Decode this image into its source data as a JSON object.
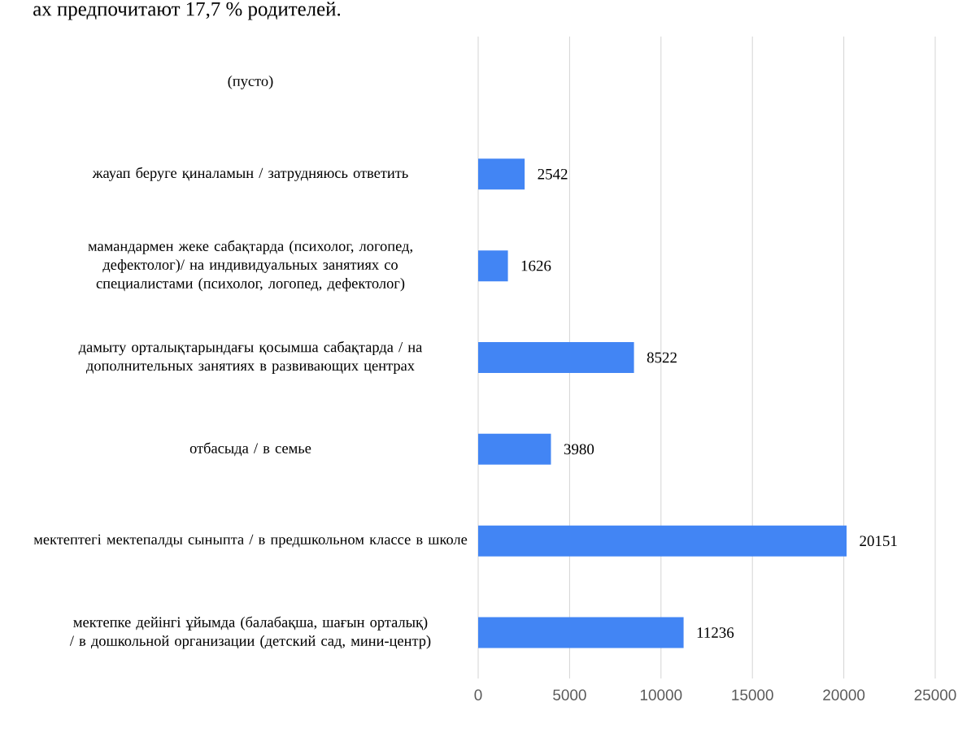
{
  "chart_data": {
    "type": "bar",
    "orientation": "horizontal",
    "annotations": [
      "ах предпочитают 17,7 % родителей."
    ],
    "categories": [
      "(пусто)",
      "жауап беруге қиналамын / затрудняюсь ответить",
      "мамандармен жеке сабақтарда (психолог, логопед, дефектолог)/ на индивидуальных занятиях со специалистами (психолог, логопед, дефектолог)",
      "дамыту орталықтарындағы қосымша сабақтарда / на дополнительных занятиях в развивающих центрах",
      "отбасыда / в семье",
      "мектептегі мектепалды сыныпта / в предшкольном классе в школе",
      "мектепке дейінгі ұйымда (балабақша, шағын орталық) / в дошкольной организации (детский сад, мини-центр)"
    ],
    "values": [
      null,
      2542,
      1626,
      8522,
      3980,
      20151,
      11236
    ],
    "color": "#4285f4",
    "data_labels": true,
    "grid": "x",
    "xlim": [
      0,
      25000
    ],
    "xticks": [
      0,
      5000,
      10000,
      15000,
      20000,
      25000
    ]
  }
}
